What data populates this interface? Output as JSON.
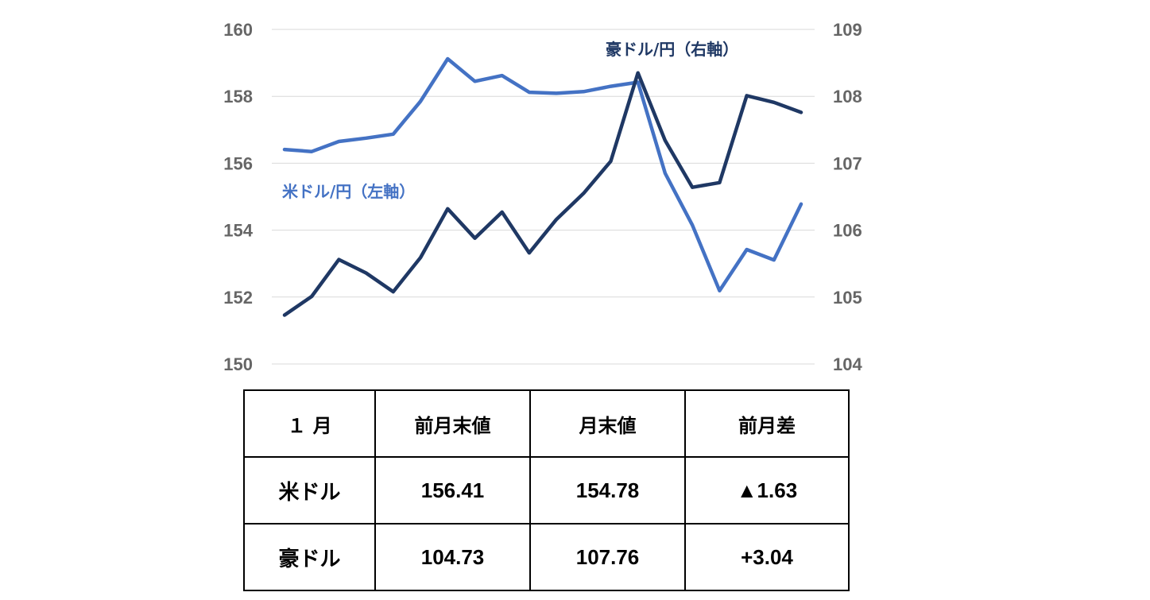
{
  "chart_data": {
    "type": "line",
    "x": [
      1,
      2,
      3,
      4,
      5,
      6,
      7,
      8,
      9,
      10,
      11,
      12,
      13,
      14,
      15,
      16,
      17,
      18,
      19,
      20
    ],
    "left_axis": {
      "ylim": [
        150,
        160
      ],
      "ticks": [
        "150",
        "152",
        "154",
        "156",
        "158",
        "160"
      ]
    },
    "right_axis": {
      "ylim": [
        104,
        109
      ],
      "ticks": [
        "104",
        "105",
        "106",
        "107",
        "108",
        "109"
      ]
    },
    "grid": true,
    "series": [
      {
        "name": "米ドル/円（左軸）",
        "axis": "left",
        "color": "#4472C4",
        "values": [
          156.41,
          156.35,
          156.65,
          156.75,
          156.87,
          157.85,
          159.12,
          158.45,
          158.62,
          158.12,
          158.09,
          158.14,
          158.3,
          158.42,
          155.7,
          154.15,
          152.19,
          153.42,
          153.11,
          154.78
        ]
      },
      {
        "name": "豪ドル/円（右軸）",
        "axis": "right",
        "color": "#1F3864",
        "values": [
          104.73,
          105.01,
          105.56,
          105.36,
          105.08,
          105.59,
          106.32,
          105.88,
          106.27,
          105.66,
          106.16,
          106.55,
          107.03,
          108.35,
          107.34,
          106.64,
          106.71,
          108.01,
          107.91,
          107.76
        ]
      }
    ]
  },
  "table": {
    "headers": [
      "１ 月",
      "前月末値",
      "月末値",
      "前月差"
    ],
    "rows": [
      [
        "米ドル",
        "156.41",
        "154.78",
        "▲1.63"
      ],
      [
        "豪ドル",
        "104.73",
        "107.76",
        "+3.04"
      ]
    ]
  }
}
